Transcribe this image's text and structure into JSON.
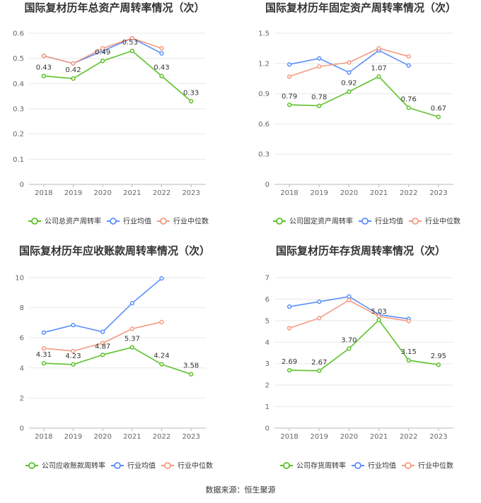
{
  "source_text": "数据来源：恒生聚源",
  "chart_data": [
    {
      "type": "line",
      "title": "国际复材历年总资产周转率情况（次）",
      "categories": [
        "2018",
        "2019",
        "2020",
        "2021",
        "2022",
        "2023"
      ],
      "ylim": [
        0,
        0.6
      ],
      "yticks": [
        "0",
        "0.1",
        "0.2",
        "0.3",
        "0.4",
        "0.5",
        "0.6"
      ],
      "grid": true,
      "legend_position": "bottom",
      "series": [
        {
          "name": "公司总资产周转率",
          "color": "#5cc229",
          "values": [
            0.43,
            0.42,
            0.49,
            0.53,
            0.43,
            0.33
          ],
          "labels": [
            "0.43",
            "0.42",
            "0.49",
            "0.53",
            "0.43",
            "0.33"
          ]
        },
        {
          "name": "行业均值",
          "color": "#5b8ff9",
          "values": [
            0.51,
            0.48,
            0.53,
            0.58,
            0.52,
            null
          ]
        },
        {
          "name": "行业中位数",
          "color": "#f59a80",
          "values": [
            0.51,
            0.48,
            0.54,
            0.58,
            0.54,
            null
          ]
        }
      ]
    },
    {
      "type": "line",
      "title": "国际复材历年固定资产周转率情况（次）",
      "categories": [
        "2018",
        "2019",
        "2020",
        "2021",
        "2022",
        "2023"
      ],
      "ylim": [
        0,
        1.5
      ],
      "yticks": [
        "0",
        "0.3",
        "0.6",
        "0.9",
        "1.2",
        "1.5"
      ],
      "grid": true,
      "legend_position": "bottom",
      "series": [
        {
          "name": "公司固定资产周转率",
          "color": "#5cc229",
          "values": [
            0.79,
            0.78,
            0.92,
            1.07,
            0.76,
            0.67
          ],
          "labels": [
            "0.79",
            "0.78",
            "0.92",
            "1.07",
            "0.76",
            "0.67"
          ]
        },
        {
          "name": "行业均值",
          "color": "#5b8ff9",
          "values": [
            1.19,
            1.25,
            1.11,
            1.33,
            1.18,
            null
          ]
        },
        {
          "name": "行业中位数",
          "color": "#f59a80",
          "values": [
            1.07,
            1.17,
            1.21,
            1.35,
            1.27,
            null
          ]
        }
      ]
    },
    {
      "type": "line",
      "title": "国际复材历年应收账款周转率情况（次）",
      "categories": [
        "2018",
        "2019",
        "2020",
        "2021",
        "2022",
        "2023"
      ],
      "ylim": [
        0,
        10
      ],
      "yticks": [
        "0",
        "2",
        "4",
        "6",
        "8",
        "10"
      ],
      "grid": true,
      "legend_position": "bottom",
      "series": [
        {
          "name": "公司应收账款周转率",
          "color": "#5cc229",
          "values": [
            4.31,
            4.23,
            4.87,
            5.37,
            4.24,
            3.58
          ],
          "labels": [
            "4.31",
            "4.23",
            "4.87",
            "5.37",
            "4.24",
            "3.58"
          ]
        },
        {
          "name": "行业均值",
          "color": "#5b8ff9",
          "values": [
            6.35,
            6.85,
            6.4,
            8.3,
            9.95,
            null
          ]
        },
        {
          "name": "行业中位数",
          "color": "#f59a80",
          "values": [
            5.3,
            5.12,
            5.65,
            6.6,
            7.05,
            null
          ]
        }
      ]
    },
    {
      "type": "line",
      "title": "国际复材历年存货周转率情况（次）",
      "categories": [
        "2018",
        "2019",
        "2020",
        "2021",
        "2022",
        "2023"
      ],
      "ylim": [
        0,
        7
      ],
      "yticks": [
        "0",
        "1",
        "2",
        "3",
        "4",
        "5",
        "6",
        "7"
      ],
      "grid": true,
      "legend_position": "bottom",
      "series": [
        {
          "name": "公司存货周转率",
          "color": "#5cc229",
          "values": [
            2.69,
            2.67,
            3.7,
            5.03,
            3.15,
            2.95
          ],
          "labels": [
            "2.69",
            "2.67",
            "3.70",
            "5.03",
            "3.15",
            "2.95"
          ]
        },
        {
          "name": "行业均值",
          "color": "#5b8ff9",
          "values": [
            5.65,
            5.88,
            6.12,
            5.28,
            5.08,
            null
          ]
        },
        {
          "name": "行业中位数",
          "color": "#f59a80",
          "values": [
            4.65,
            5.12,
            5.95,
            5.2,
            4.98,
            null
          ]
        }
      ]
    }
  ]
}
